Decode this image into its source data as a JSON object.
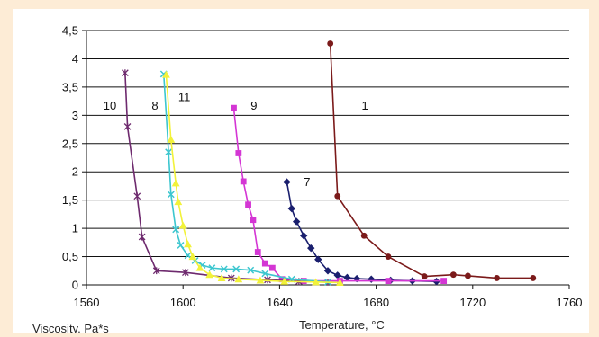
{
  "chart_data": {
    "type": "line",
    "title": "",
    "xlabel": "Temperature, °C",
    "ylabel": "Viscosity, Pa*s",
    "xlim": [
      1560,
      1760
    ],
    "ylim": [
      0,
      4.5
    ],
    "x_ticks": [
      "1560",
      "1600",
      "1640",
      "1680",
      "1720",
      "1760"
    ],
    "y_ticks": [
      "0",
      "0,5",
      "1",
      "1,5",
      "2",
      "2,5",
      "3",
      "3,5",
      "4",
      "4,5"
    ],
    "grid": "horizontal",
    "legend": "none",
    "series": [
      {
        "name": "1",
        "color": "#7b1a1a",
        "marker": "circle",
        "x": [
          1661,
          1664,
          1675,
          1685,
          1700,
          1712,
          1718,
          1730,
          1745
        ],
        "y": [
          4.27,
          1.57,
          0.87,
          0.5,
          0.15,
          0.18,
          0.16,
          0.12,
          0.12
        ]
      },
      {
        "name": "7",
        "color": "#1a1f6e",
        "marker": "diamond",
        "x": [
          1643,
          1645,
          1647,
          1650,
          1653,
          1656,
          1660,
          1664,
          1668,
          1672,
          1678,
          1686,
          1695,
          1705
        ],
        "y": [
          1.82,
          1.35,
          1.12,
          0.87,
          0.65,
          0.45,
          0.25,
          0.17,
          0.13,
          0.11,
          0.1,
          0.08,
          0.07,
          0.06
        ]
      },
      {
        "name": "9",
        "color": "#d436d4",
        "marker": "square",
        "x": [
          1621,
          1623,
          1625,
          1627,
          1629,
          1631,
          1634,
          1637,
          1641,
          1650,
          1665,
          1685,
          1708
        ],
        "y": [
          3.13,
          2.33,
          1.83,
          1.42,
          1.15,
          0.58,
          0.38,
          0.3,
          0.1,
          0.07,
          0.07,
          0.07,
          0.07
        ]
      },
      {
        "name": "10",
        "color": "#6e2a6e",
        "marker": "star",
        "x": [
          1576,
          1577,
          1581,
          1583,
          1589,
          1601,
          1620,
          1635,
          1648,
          1660
        ],
        "y": [
          3.75,
          2.8,
          1.57,
          0.85,
          0.25,
          0.22,
          0.12,
          0.09,
          0.06,
          0.05
        ]
      },
      {
        "name": "8",
        "color": "#3cc6cf",
        "marker": "cross",
        "x": [
          1592,
          1594,
          1595,
          1597,
          1599,
          1602,
          1605,
          1608,
          1612,
          1617,
          1622,
          1628,
          1634,
          1645,
          1660
        ],
        "y": [
          3.73,
          2.35,
          1.6,
          0.98,
          0.7,
          0.52,
          0.43,
          0.35,
          0.3,
          0.28,
          0.28,
          0.26,
          0.2,
          0.1,
          0.05
        ]
      },
      {
        "name": "11",
        "color": "#f2f23a",
        "marker": "triangle",
        "x": [
          1593,
          1595,
          1597,
          1598,
          1600,
          1602,
          1604,
          1607,
          1611,
          1616,
          1623,
          1632,
          1642,
          1655,
          1665
        ],
        "y": [
          3.72,
          2.57,
          1.8,
          1.47,
          1.05,
          0.72,
          0.5,
          0.3,
          0.18,
          0.12,
          0.1,
          0.08,
          0.06,
          0.05,
          0.04
        ]
      }
    ]
  }
}
